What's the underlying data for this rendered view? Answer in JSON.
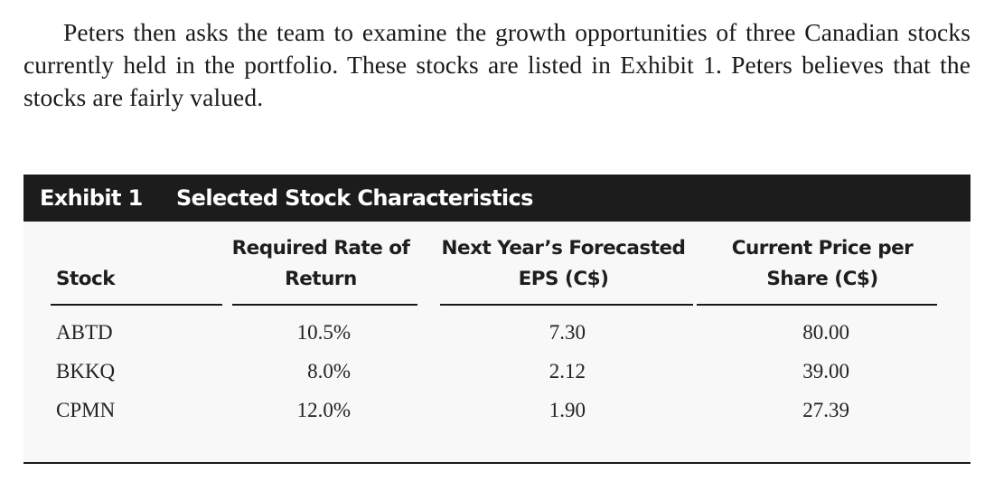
{
  "intro_paragraph": "Peters then asks the team to examine the growth opportunities of three Canadian stocks currently held in the portfolio. These stocks are listed in Exhibit 1. Peters believes that the stocks are fairly valued.",
  "exhibit": {
    "label": "Exhibit 1",
    "title": "Selected Stock Characteristics"
  },
  "table": {
    "headers": {
      "stock": "Stock",
      "required_rate_line1": "Required Rate of",
      "required_rate_line2": "Return",
      "eps_line1": "Next Year’s Forecasted",
      "eps_line2": "EPS (C$)",
      "price_line1": "Current Price per",
      "price_line2": "Share (C$)"
    },
    "rows": [
      {
        "stock": "ABTD",
        "required_rate": "10.5%",
        "eps": "7.30",
        "price": "80.00"
      },
      {
        "stock": "BKKQ",
        "required_rate": "8.0%",
        "eps": "2.12",
        "price": "39.00"
      },
      {
        "stock": "CPMN",
        "required_rate": "12.0%",
        "eps": "1.90",
        "price": "27.39"
      }
    ]
  },
  "colors": {
    "exhibit_bar": "#1c1c1c",
    "table_background": "#f8f8f8",
    "text": "#1a1a1a"
  }
}
